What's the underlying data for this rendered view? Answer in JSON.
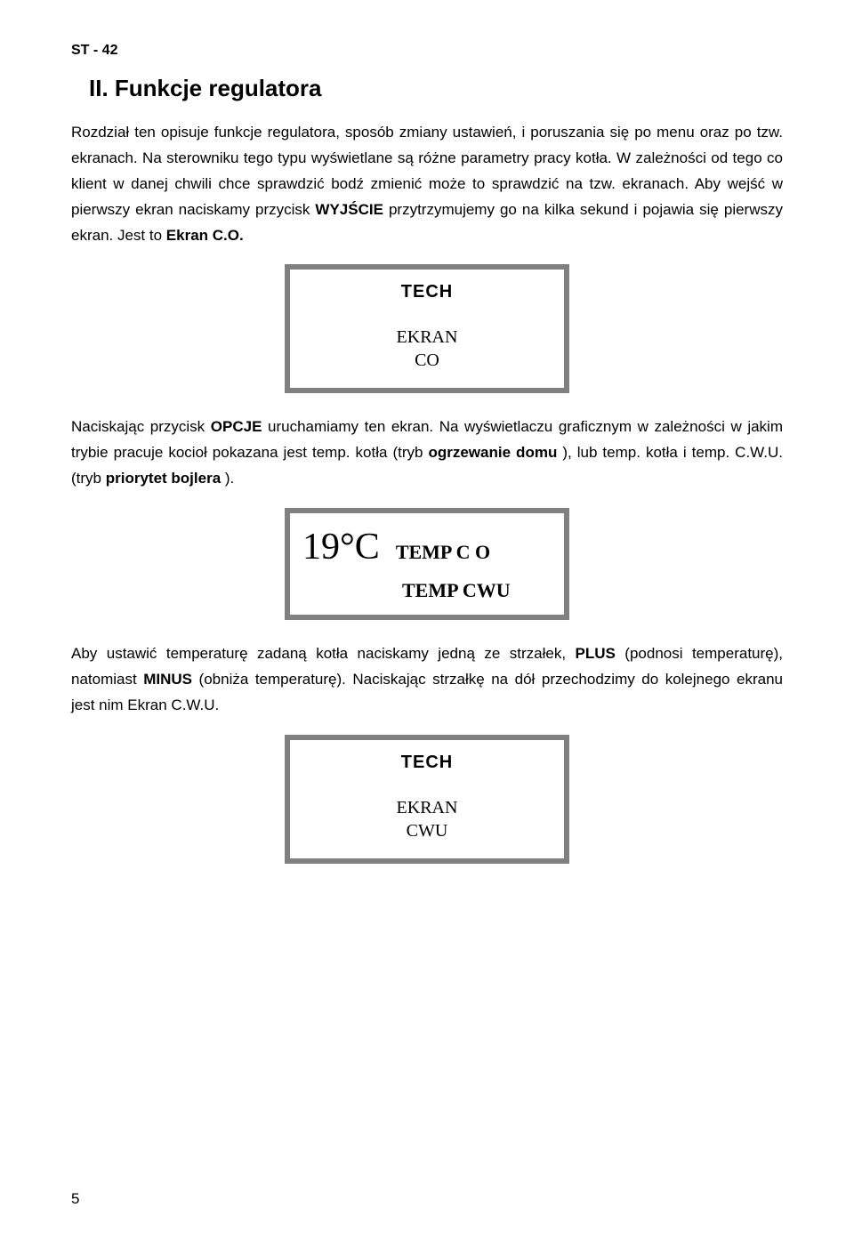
{
  "header": "ST - 42",
  "heading": "II. Funkcje regulatora",
  "para1_pre": "Rozdział ten opisuje funkcje regulatora, sposób zmiany ustawień, i poruszania się po menu oraz po tzw. ekranach. Na sterowniku tego typu wyświetlane są różne parametry pracy kotła. W zależności od tego co klient w danej chwili chce  sprawdzić bodź zmienić może to sprawdzić na tzw. ekranach. Aby wejść w pierwszy ekran naciskamy przycisk ",
  "para1_b1": "WYJŚCIE",
  "para1_mid": " przytrzymujemy go na kilka sekund i pojawia się pierwszy ekran. Jest to ",
  "para1_b2": "Ekran C.O.",
  "box1": {
    "logo": "TECH",
    "line1": "EKRAN",
    "line2": "CO"
  },
  "para2_pre": "Naciskając przycisk ",
  "para2_b1": "OPCJE",
  "para2_mid1": " uruchamiamy ten ekran. Na wyświetlaczu graficznym w zależności w jakim trybie pracuje kocioł pokazana jest temp. kotła (tryb ",
  "para2_b2": "ogrzewanie domu",
  "para2_mid2": " ), lub temp. kotła i temp. C.W.U. (tryb ",
  "para2_b3": "priorytet bojlera",
  "para2_end": " ).",
  "box2": {
    "temp": "19°C",
    "label1": "TEMP C O",
    "label2": "TEMP CWU"
  },
  "para3_pre": " Aby ustawić temperaturę zadaną kotła naciskamy jedną ze strzałek, ",
  "para3_b1": "PLUS",
  "para3_mid1": " (podnosi temperaturę), natomiast ",
  "para3_b2": "MINUS",
  "para3_mid2": " (obniża  temperaturę). Naciskając strzałkę na dół przechodzimy do kolejnego ekranu jest nim Ekran C.W.U.",
  "box3": {
    "logo": "TECH",
    "line1": "EKRAN",
    "line2": "CWU"
  },
  "pageNumber": "5",
  "colors": {
    "border": "#808080",
    "text": "#000000",
    "bg": "#ffffff"
  }
}
